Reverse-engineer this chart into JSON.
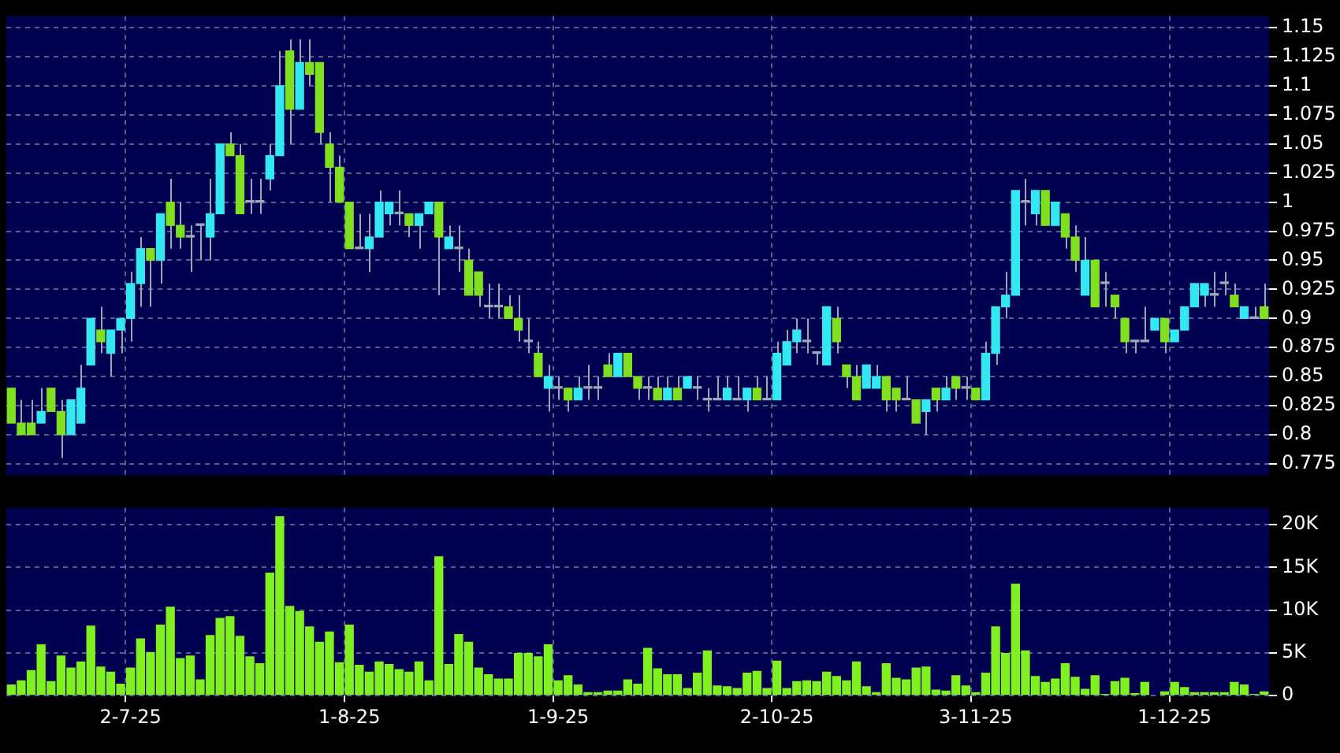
{
  "chart_data": [
    {
      "type": "candlestick",
      "categories": [
        null,
        null,
        null,
        null,
        null,
        null,
        null,
        null,
        null,
        null,
        null,
        null,
        null,
        null,
        null,
        null,
        null,
        null,
        null,
        null,
        null,
        null,
        null,
        null,
        null,
        null,
        null,
        null,
        null,
        null,
        null,
        null,
        null,
        null,
        null,
        null,
        null,
        null,
        null,
        null,
        null,
        null,
        null,
        null,
        null,
        null,
        null,
        null,
        null,
        null,
        null,
        null,
        null,
        null,
        null,
        null,
        null,
        null,
        null,
        null,
        null,
        null,
        null,
        null,
        null,
        null,
        null,
        null,
        null,
        null,
        null,
        null,
        null,
        null,
        null,
        null,
        null,
        null,
        null,
        null,
        null,
        null,
        null,
        null,
        null,
        null,
        null,
        null,
        null,
        null,
        null,
        null,
        null,
        null,
        null,
        null,
        null,
        null,
        null,
        null,
        null,
        null,
        null,
        null,
        null,
        null,
        null,
        null,
        null,
        null,
        null,
        null,
        null,
        null,
        null,
        null,
        null,
        null,
        null,
        null,
        null,
        null,
        null,
        null,
        null,
        null,
        null
      ],
      "ohlc": [
        [
          0.84,
          0.84,
          0.81,
          0.81
        ],
        [
          0.81,
          0.83,
          0.8,
          0.8
        ],
        [
          0.81,
          0.83,
          0.8,
          0.8
        ],
        [
          0.81,
          0.84,
          0.81,
          0.82
        ],
        [
          0.84,
          0.84,
          0.82,
          0.82
        ],
        [
          0.82,
          0.83,
          0.78,
          0.8
        ],
        [
          0.8,
          0.83,
          0.8,
          0.83
        ],
        [
          0.81,
          0.86,
          0.81,
          0.84
        ],
        [
          0.86,
          0.9,
          0.86,
          0.9
        ],
        [
          0.89,
          0.91,
          0.87,
          0.88
        ],
        [
          0.87,
          0.89,
          0.85,
          0.89
        ],
        [
          0.89,
          0.9,
          0.87,
          0.9
        ],
        [
          0.9,
          0.94,
          0.88,
          0.93
        ],
        [
          0.93,
          0.97,
          0.91,
          0.96
        ],
        [
          0.96,
          0.96,
          0.91,
          0.95
        ],
        [
          0.95,
          0.99,
          0.93,
          0.99
        ],
        [
          1.0,
          1.02,
          0.96,
          0.98
        ],
        [
          0.98,
          1.0,
          0.96,
          0.97
        ],
        [
          0.97,
          0.98,
          0.94,
          0.97
        ],
        [
          0.98,
          0.98,
          0.95,
          0.98
        ],
        [
          0.97,
          1.02,
          0.95,
          0.99
        ],
        [
          0.99,
          1.05,
          0.99,
          1.05
        ],
        [
          1.05,
          1.06,
          1.04,
          1.04
        ],
        [
          1.04,
          1.05,
          0.99,
          0.99
        ],
        [
          1.0,
          1.02,
          0.99,
          1.0
        ],
        [
          1.0,
          1.02,
          0.99,
          1.0
        ],
        [
          1.02,
          1.05,
          1.01,
          1.04
        ],
        [
          1.04,
          1.13,
          1.04,
          1.1
        ],
        [
          1.13,
          1.14,
          1.05,
          1.08
        ],
        [
          1.08,
          1.14,
          1.08,
          1.12
        ],
        [
          1.12,
          1.14,
          1.1,
          1.11
        ],
        [
          1.12,
          1.12,
          1.05,
          1.06
        ],
        [
          1.05,
          1.06,
          1.0,
          1.03
        ],
        [
          1.03,
          1.04,
          1.0,
          1.0
        ],
        [
          1.0,
          1.0,
          0.96,
          0.96
        ],
        [
          0.96,
          0.99,
          0.96,
          0.96
        ],
        [
          0.96,
          0.99,
          0.94,
          0.97
        ],
        [
          0.97,
          1.01,
          0.97,
          1.0
        ],
        [
          0.99,
          1.0,
          0.98,
          1.0
        ],
        [
          0.99,
          1.01,
          0.98,
          0.99
        ],
        [
          0.99,
          0.99,
          0.97,
          0.98
        ],
        [
          0.98,
          0.99,
          0.96,
          0.99
        ],
        [
          0.99,
          1.0,
          0.99,
          1.0
        ],
        [
          1.0,
          1.0,
          0.92,
          0.97
        ],
        [
          0.96,
          0.98,
          0.96,
          0.97
        ],
        [
          0.96,
          0.98,
          0.94,
          0.96
        ],
        [
          0.95,
          0.96,
          0.92,
          0.92
        ],
        [
          0.94,
          0.94,
          0.91,
          0.92
        ],
        [
          0.91,
          0.93,
          0.9,
          0.91
        ],
        [
          0.91,
          0.93,
          0.9,
          0.91
        ],
        [
          0.91,
          0.92,
          0.9,
          0.9
        ],
        [
          0.9,
          0.92,
          0.88,
          0.89
        ],
        [
          0.88,
          0.9,
          0.87,
          0.88
        ],
        [
          0.87,
          0.88,
          0.85,
          0.85
        ],
        [
          0.84,
          0.86,
          0.82,
          0.85
        ],
        [
          0.84,
          0.85,
          0.83,
          0.84
        ],
        [
          0.84,
          0.84,
          0.82,
          0.83
        ],
        [
          0.83,
          0.85,
          0.83,
          0.84
        ],
        [
          0.84,
          0.86,
          0.83,
          0.84
        ],
        [
          0.84,
          0.85,
          0.83,
          0.84
        ],
        [
          0.86,
          0.87,
          0.85,
          0.85
        ],
        [
          0.85,
          0.87,
          0.85,
          0.87
        ],
        [
          0.87,
          0.87,
          0.85,
          0.85
        ],
        [
          0.85,
          0.85,
          0.83,
          0.84
        ],
        [
          0.84,
          0.85,
          0.83,
          0.84
        ],
        [
          0.84,
          0.85,
          0.83,
          0.83
        ],
        [
          0.83,
          0.85,
          0.83,
          0.84
        ],
        [
          0.84,
          0.85,
          0.83,
          0.83
        ],
        [
          0.84,
          0.85,
          0.84,
          0.85
        ],
        [
          0.84,
          0.85,
          0.83,
          0.84
        ],
        [
          0.83,
          0.84,
          0.82,
          0.83
        ],
        [
          0.83,
          0.85,
          0.83,
          0.83
        ],
        [
          0.83,
          0.85,
          0.83,
          0.84
        ],
        [
          0.83,
          0.85,
          0.83,
          0.83
        ],
        [
          0.83,
          0.84,
          0.82,
          0.84
        ],
        [
          0.84,
          0.85,
          0.83,
          0.83
        ],
        [
          0.83,
          0.85,
          0.83,
          0.83
        ],
        [
          0.83,
          0.88,
          0.83,
          0.87
        ],
        [
          0.86,
          0.89,
          0.86,
          0.88
        ],
        [
          0.88,
          0.9,
          0.87,
          0.89
        ],
        [
          0.88,
          0.9,
          0.87,
          0.88
        ],
        [
          0.87,
          0.87,
          0.86,
          0.87
        ],
        [
          0.86,
          0.91,
          0.86,
          0.91
        ],
        [
          0.9,
          0.91,
          0.87,
          0.88
        ],
        [
          0.86,
          0.86,
          0.84,
          0.85
        ],
        [
          0.85,
          0.86,
          0.83,
          0.83
        ],
        [
          0.84,
          0.86,
          0.84,
          0.86
        ],
        [
          0.84,
          0.86,
          0.84,
          0.85
        ],
        [
          0.85,
          0.85,
          0.82,
          0.83
        ],
        [
          0.84,
          0.84,
          0.82,
          0.83
        ],
        [
          0.83,
          0.85,
          0.83,
          0.83
        ],
        [
          0.83,
          0.83,
          0.81,
          0.81
        ],
        [
          0.82,
          0.83,
          0.8,
          0.83
        ],
        [
          0.84,
          0.84,
          0.82,
          0.83
        ],
        [
          0.83,
          0.85,
          0.83,
          0.84
        ],
        [
          0.85,
          0.85,
          0.83,
          0.84
        ],
        [
          0.84,
          0.85,
          0.83,
          0.84
        ],
        [
          0.84,
          0.84,
          0.83,
          0.83
        ],
        [
          0.83,
          0.88,
          0.83,
          0.87
        ],
        [
          0.87,
          0.91,
          0.86,
          0.91
        ],
        [
          0.91,
          0.94,
          0.9,
          0.92
        ],
        [
          0.92,
          1.01,
          0.92,
          1.01
        ],
        [
          1.0,
          1.02,
          0.98,
          1.0
        ],
        [
          0.99,
          1.01,
          0.98,
          1.01
        ],
        [
          1.01,
          1.01,
          0.98,
          0.98
        ],
        [
          0.98,
          1.0,
          0.98,
          1.0
        ],
        [
          0.99,
          0.99,
          0.96,
          0.97
        ],
        [
          0.97,
          0.98,
          0.94,
          0.95
        ],
        [
          0.92,
          0.97,
          0.92,
          0.95
        ],
        [
          0.95,
          0.95,
          0.91,
          0.91
        ],
        [
          0.93,
          0.94,
          0.91,
          0.93
        ],
        [
          0.92,
          0.92,
          0.9,
          0.91
        ],
        [
          0.9,
          0.9,
          0.87,
          0.88
        ],
        [
          0.88,
          0.88,
          0.87,
          0.88
        ],
        [
          0.88,
          0.91,
          0.88,
          0.88
        ],
        [
          0.89,
          0.9,
          0.89,
          0.9
        ],
        [
          0.9,
          0.9,
          0.87,
          0.88
        ],
        [
          0.88,
          0.89,
          0.88,
          0.89
        ],
        [
          0.89,
          0.91,
          0.89,
          0.91
        ],
        [
          0.91,
          0.93,
          0.91,
          0.93
        ],
        [
          0.92,
          0.93,
          0.91,
          0.93
        ],
        [
          0.92,
          0.94,
          0.91,
          0.92
        ],
        [
          0.93,
          0.94,
          0.92,
          0.93
        ],
        [
          0.92,
          0.93,
          0.91,
          0.91
        ],
        [
          0.9,
          0.91,
          0.9,
          0.91
        ],
        [
          0.9,
          0.91,
          0.9,
          0.9
        ],
        [
          0.91,
          0.93,
          0.9,
          0.9
        ]
      ],
      "colors": [
        "#80e020",
        "#80e020",
        "#80e020",
        "#33e8f0",
        "#80e020",
        "#80e020",
        "#33e8f0",
        "#33e8f0",
        "#33e8f0",
        "#80e020",
        "#33e8f0",
        "#33e8f0",
        "#33e8f0",
        "#33e8f0",
        "#80e020",
        "#33e8f0",
        "#80e020",
        "#80e020",
        "#a0a8b8",
        "#a0a8b8",
        "#33e8f0",
        "#33e8f0",
        "#80e020",
        "#80e020",
        "#a0a8b8",
        "#a0a8b8",
        "#33e8f0",
        "#33e8f0",
        "#80e020",
        "#33e8f0",
        "#80e020",
        "#80e020",
        "#80e020",
        "#80e020",
        "#80e020",
        "#a0a8b8",
        "#33e8f0",
        "#33e8f0",
        "#33e8f0",
        "#a0a8b8",
        "#80e020",
        "#33e8f0",
        "#33e8f0",
        "#80e020",
        "#33e8f0",
        "#a0a8b8",
        "#80e020",
        "#80e020",
        "#a0a8b8",
        "#a0a8b8",
        "#80e020",
        "#80e020",
        "#a0a8b8",
        "#80e020",
        "#33e8f0",
        "#a0a8b8",
        "#80e020",
        "#33e8f0",
        "#a0a8b8",
        "#a0a8b8",
        "#80e020",
        "#33e8f0",
        "#80e020",
        "#80e020",
        "#a0a8b8",
        "#80e020",
        "#33e8f0",
        "#80e020",
        "#33e8f0",
        "#a0a8b8",
        "#a0a8b8",
        "#a0a8b8",
        "#33e8f0",
        "#a0a8b8",
        "#33e8f0",
        "#80e020",
        "#a0a8b8",
        "#33e8f0",
        "#33e8f0",
        "#33e8f0",
        "#a0a8b8",
        "#a0a8b8",
        "#33e8f0",
        "#80e020",
        "#80e020",
        "#80e020",
        "#33e8f0",
        "#33e8f0",
        "#80e020",
        "#80e020",
        "#a0a8b8",
        "#80e020",
        "#33e8f0",
        "#80e020",
        "#33e8f0",
        "#80e020",
        "#a0a8b8",
        "#80e020",
        "#33e8f0",
        "#33e8f0",
        "#33e8f0",
        "#33e8f0",
        "#a0a8b8",
        "#33e8f0",
        "#80e020",
        "#33e8f0",
        "#80e020",
        "#80e020",
        "#33e8f0",
        "#80e020",
        "#a0a8b8",
        "#80e020",
        "#80e020",
        "#a0a8b8",
        "#a0a8b8",
        "#33e8f0",
        "#80e020",
        "#33e8f0",
        "#33e8f0",
        "#33e8f0",
        "#33e8f0",
        "#a0a8b8",
        "#a0a8b8",
        "#80e020",
        "#33e8f0",
        "#a0a8b8",
        "#80e020"
      ],
      "ylim": [
        0.765,
        1.16
      ],
      "yticks": [
        0.775,
        0.8,
        0.825,
        0.85,
        0.875,
        0.9,
        0.925,
        0.95,
        0.975,
        1,
        1.025,
        1.05,
        1.075,
        1.1,
        1.125,
        1.15
      ],
      "grid": true,
      "tick_labels": "y"
    },
    {
      "type": "bar",
      "categories": [
        null,
        null,
        null,
        null,
        null,
        null,
        null,
        null,
        null,
        null,
        null,
        null,
        "2-7-25",
        null,
        null,
        null,
        null,
        null,
        null,
        null,
        null,
        null,
        null,
        null,
        null,
        null,
        null,
        null,
        null,
        null,
        null,
        null,
        null,
        null,
        "1-8-25",
        null,
        null,
        null,
        null,
        null,
        null,
        null,
        null,
        null,
        null,
        null,
        null,
        null,
        null,
        null,
        null,
        null,
        null,
        null,
        null,
        "1-9-25",
        null,
        null,
        null,
        null,
        null,
        null,
        null,
        null,
        null,
        null,
        null,
        null,
        null,
        null,
        null,
        null,
        null,
        null,
        null,
        null,
        null,
        "2-10-25",
        null,
        null,
        null,
        null,
        null,
        null,
        null,
        null,
        null,
        null,
        null,
        null,
        null,
        null,
        null,
        null,
        null,
        null,
        null,
        "3-11-25",
        null,
        null,
        null,
        null,
        null,
        null,
        null,
        null,
        null,
        null,
        null,
        null,
        null,
        null,
        null,
        null,
        null,
        null,
        null,
        "1-12-25",
        null,
        null,
        null,
        null,
        null,
        null,
        null,
        null,
        null
      ],
      "values": [
        1300,
        1800,
        3000,
        6000,
        1700,
        4700,
        3300,
        4000,
        8200,
        3400,
        2800,
        1400,
        3300,
        6700,
        5100,
        8300,
        10400,
        4400,
        4700,
        1900,
        7100,
        9100,
        9300,
        7000,
        4600,
        3800,
        14400,
        21000,
        10500,
        9900,
        8100,
        6300,
        7500,
        3900,
        8300,
        3600,
        2800,
        4000,
        3700,
        3100,
        2800,
        4000,
        1800,
        16300,
        3700,
        7200,
        6300,
        3300,
        2500,
        2000,
        2000,
        5000,
        5000,
        4600,
        6000,
        1800,
        2400,
        1300,
        400,
        400,
        600,
        600,
        1900,
        1400,
        5600,
        3200,
        2500,
        2500,
        900,
        2700,
        5300,
        1200,
        1100,
        900,
        2700,
        2900,
        900,
        4100,
        900,
        1700,
        1800,
        1700,
        2800,
        2300,
        1800,
        4000,
        1100,
        400,
        3800,
        2100,
        1900,
        3300,
        3400,
        700,
        600,
        2400,
        1200,
        400,
        2700,
        8100,
        5000,
        13100,
        5300,
        2300,
        1600,
        2000,
        3800,
        2200,
        800,
        2400,
        200,
        1700,
        2100,
        300,
        1600,
        0,
        500,
        1600,
        1000,
        400,
        400,
        400,
        400,
        1600,
        1300,
        200,
        500
      ],
      "color": "#80f020",
      "ylim": [
        0,
        22000
      ],
      "yticks": [
        0,
        {
          "value": 5000,
          "label": "5K"
        },
        {
          "value": 10000,
          "label": "10K"
        },
        {
          "value": 15000,
          "label": "15K"
        },
        {
          "value": 20000,
          "label": "20K"
        }
      ],
      "grid": true
    }
  ]
}
